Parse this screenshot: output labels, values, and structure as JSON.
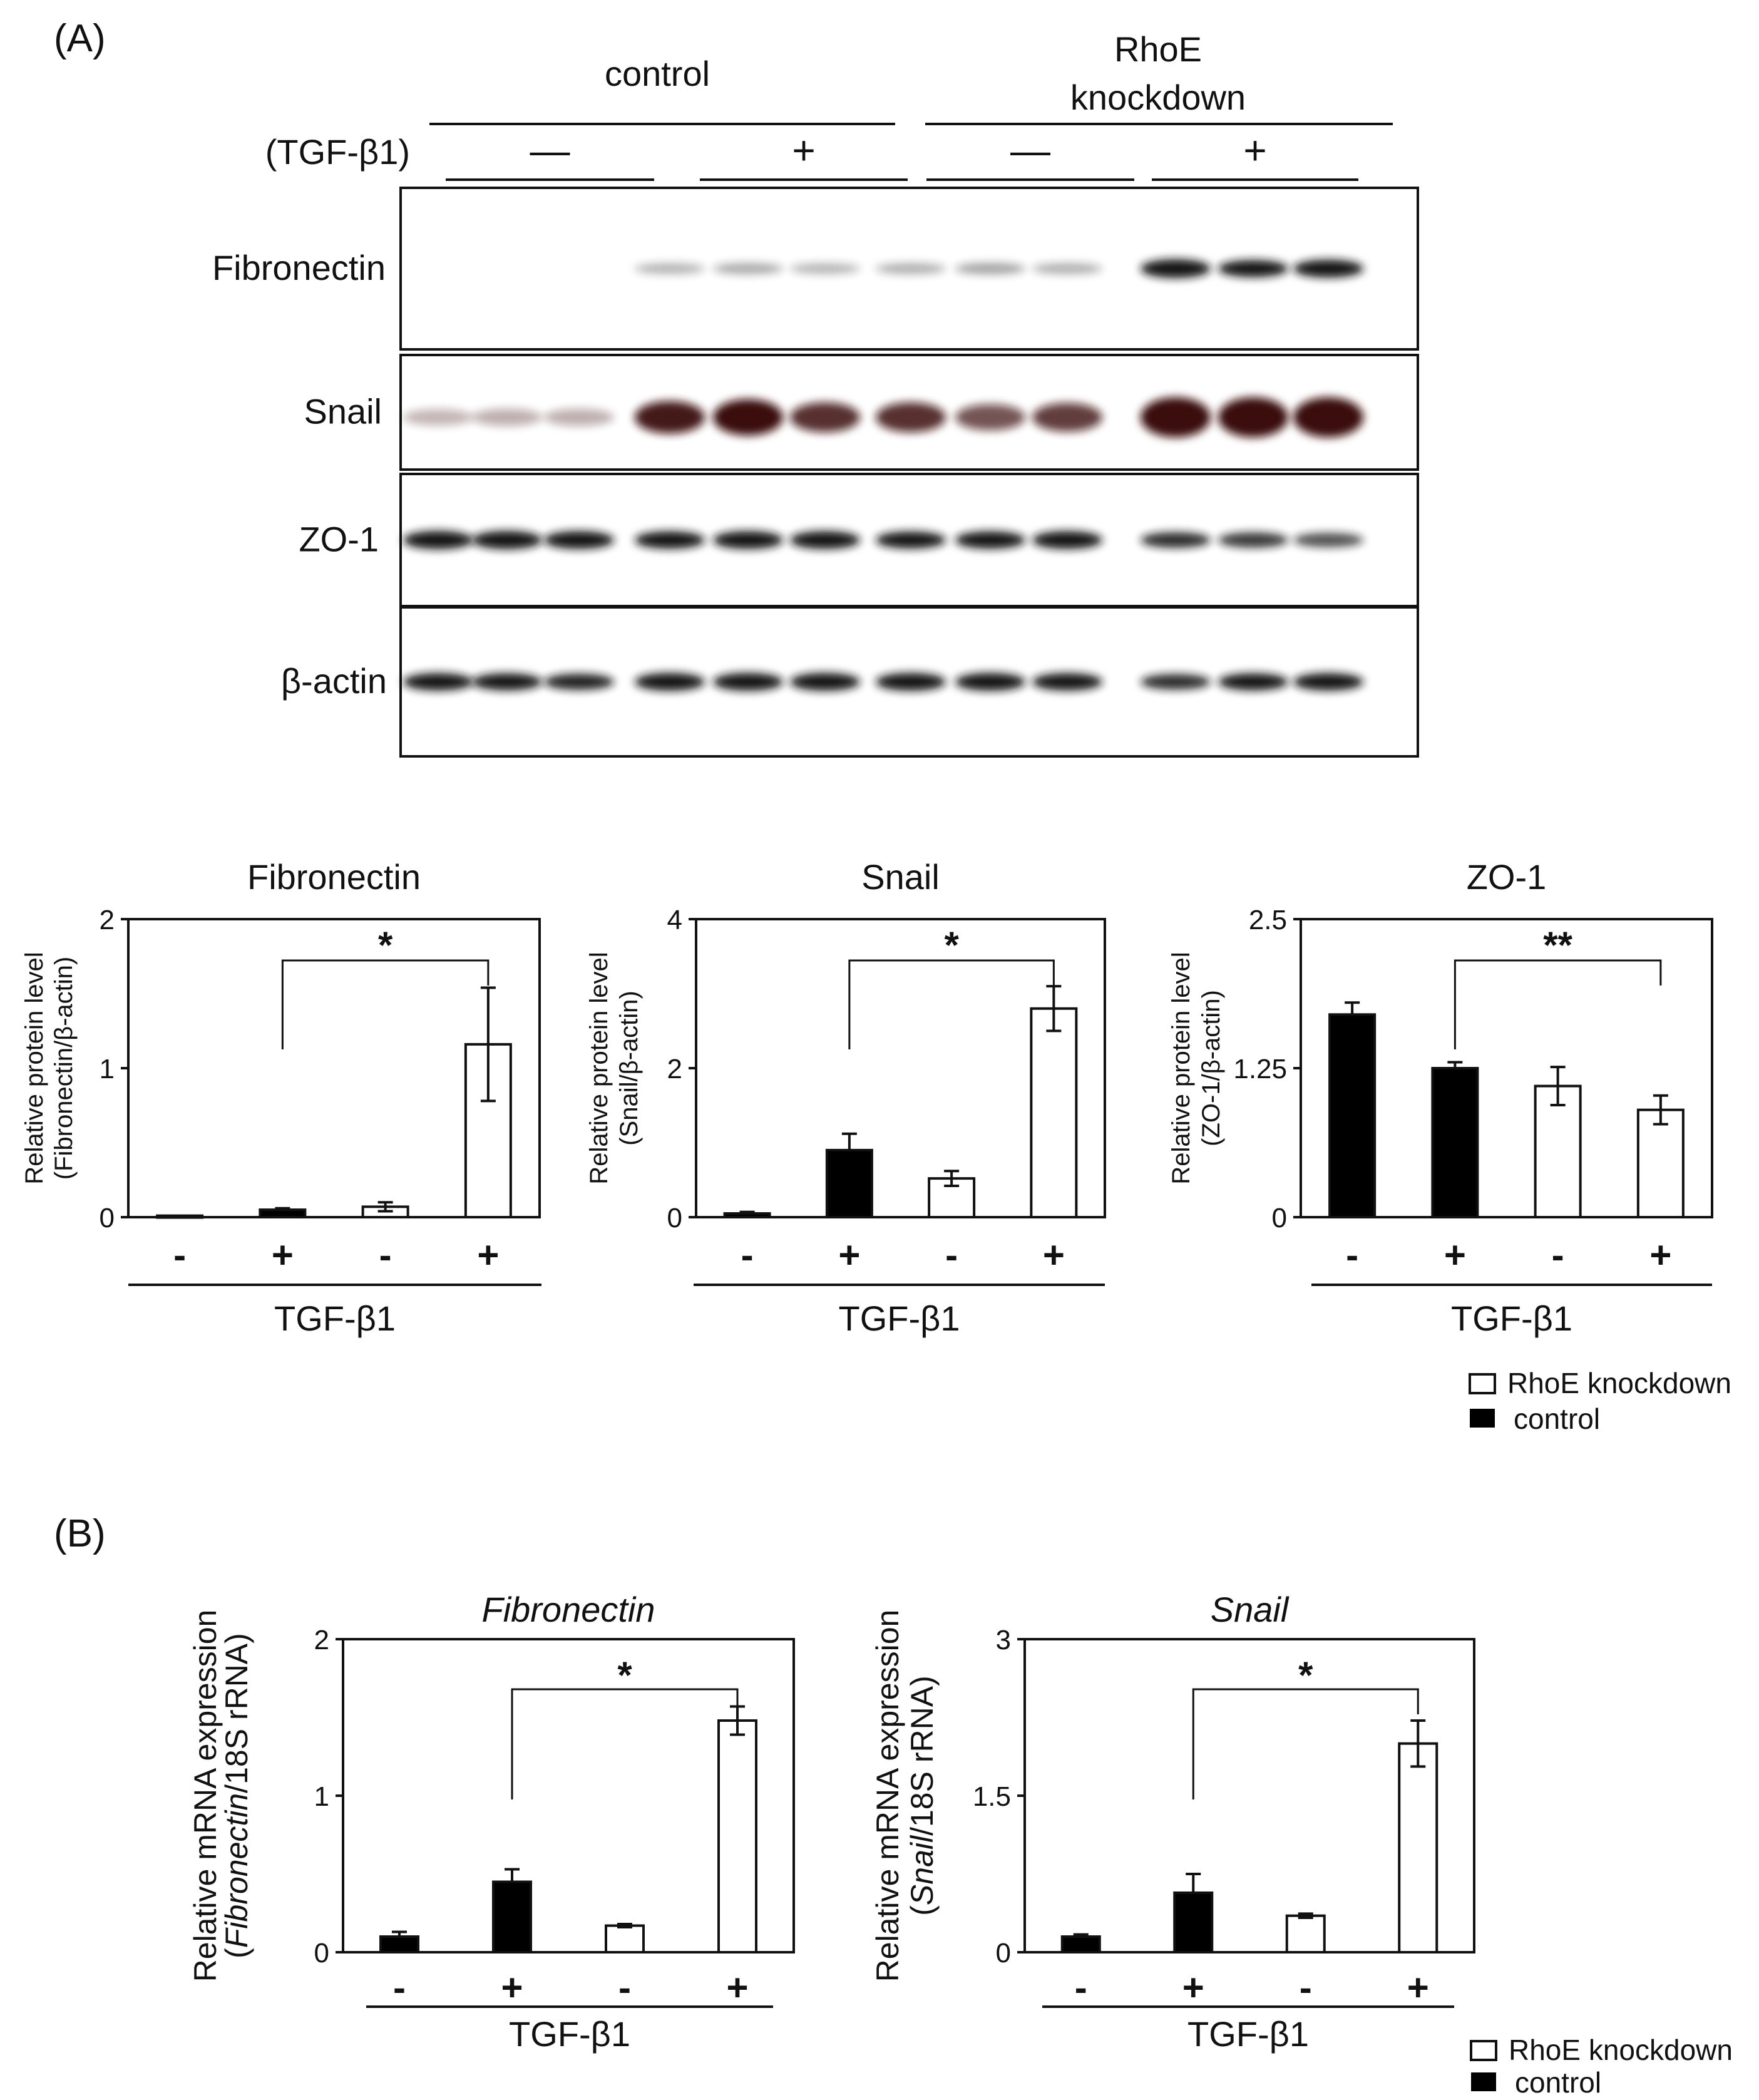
{
  "panel_a": {
    "label": "(A)",
    "header": {
      "control": "control",
      "rhoe_line1": "RhoE",
      "rhoe_line2": "knockdown",
      "tgf": "(TGF-β1)",
      "signs": [
        "—",
        "+",
        "—",
        "+"
      ]
    },
    "blots": [
      {
        "label": "Fibronectin",
        "intensity": [
          0.0,
          0.0,
          0.0,
          0.08,
          0.12,
          0.07,
          0.1,
          0.15,
          0.1,
          1.0,
          0.8,
          0.9
        ]
      },
      {
        "label": "Snail",
        "intensity": [
          0.05,
          0.08,
          0.08,
          0.7,
          0.85,
          0.6,
          0.6,
          0.45,
          0.55,
          1.0,
          1.0,
          1.0
        ]
      },
      {
        "label": "ZO-1",
        "intensity": [
          0.95,
          0.95,
          0.9,
          0.85,
          0.9,
          0.9,
          0.8,
          0.85,
          0.9,
          0.65,
          0.6,
          0.5
        ]
      },
      {
        "label": "β-actin",
        "intensity": [
          0.85,
          0.8,
          0.7,
          0.9,
          0.9,
          0.9,
          0.9,
          0.9,
          0.85,
          0.65,
          0.8,
          0.85
        ]
      }
    ]
  },
  "panel_b": {
    "label": "(B)"
  },
  "legend": {
    "open": "RhoE knockdown",
    "filled": "control"
  },
  "colors": {
    "control": "#000000",
    "knockdown": "#ffffff",
    "blot_band": "#141414",
    "snail_band": "#3a0c08"
  },
  "chart_data": [
    {
      "type": "bar",
      "title": "Fibronectin",
      "title_italic": false,
      "ylabel_line1": "Relative protein level",
      "ylabel_line2": "(Fibronectin/β-actin)",
      "ylim": [
        0,
        2
      ],
      "yticks": [
        "0",
        "1",
        "2"
      ],
      "categories": [
        "-",
        "+",
        "-",
        "+"
      ],
      "groups": [
        "control",
        "control",
        "knockdown",
        "knockdown"
      ],
      "values": [
        0.01,
        0.05,
        0.07,
        1.16
      ],
      "errors": [
        0.0,
        0.01,
        0.03,
        0.38
      ],
      "xlabel": "TGF-β1",
      "sig": {
        "from": 1,
        "to": 3,
        "label": "*"
      }
    },
    {
      "type": "bar",
      "title": "Snail",
      "title_italic": false,
      "ylabel_line1": "Relative protein level",
      "ylabel_line2": "(Snail/β-actin)",
      "ylim": [
        0,
        4
      ],
      "yticks": [
        "0",
        "2",
        "4"
      ],
      "categories": [
        "-",
        "+",
        "-",
        "+"
      ],
      "groups": [
        "control",
        "control",
        "knockdown",
        "knockdown"
      ],
      "values": [
        0.05,
        0.9,
        0.52,
        2.8
      ],
      "errors": [
        0.02,
        0.22,
        0.1,
        0.3
      ],
      "xlabel": "TGF-β1",
      "sig": {
        "from": 1,
        "to": 3,
        "label": "*"
      }
    },
    {
      "type": "bar",
      "title": "ZO-1",
      "title_italic": false,
      "ylabel_line1": "Relative protein level",
      "ylabel_line2": "(ZO-1/β-actin)",
      "ylim": [
        0,
        2.5
      ],
      "yticks": [
        "0",
        "1.25",
        "2.5"
      ],
      "categories": [
        "-",
        "+",
        "-",
        "+"
      ],
      "groups": [
        "control",
        "control",
        "knockdown",
        "knockdown"
      ],
      "values": [
        1.7,
        1.25,
        1.1,
        0.9
      ],
      "errors": [
        0.1,
        0.05,
        0.16,
        0.12
      ],
      "xlabel": "TGF-β1",
      "sig": {
        "from": 1,
        "to": 3,
        "label": "**"
      }
    },
    {
      "type": "bar",
      "title": "Fibronectin",
      "title_italic": true,
      "ylabel_line1": "Relative mRNA expression",
      "ylabel_line2_italic": "Fibronectin",
      "ylabel_line2_rest": "/18S rRNA)",
      "ylim": [
        0,
        2
      ],
      "yticks": [
        "0",
        "1",
        "2"
      ],
      "categories": [
        "-",
        "+",
        "-",
        "+"
      ],
      "groups": [
        "control",
        "control",
        "knockdown",
        "knockdown"
      ],
      "values": [
        0.1,
        0.45,
        0.17,
        1.48
      ],
      "errors": [
        0.03,
        0.08,
        0.01,
        0.09
      ],
      "xlabel": "TGF-β1",
      "sig": {
        "from": 1,
        "to": 3,
        "label": "*"
      }
    },
    {
      "type": "bar",
      "title": "Snail",
      "title_italic": true,
      "ylabel_line1": "Relative mRNA expression",
      "ylabel_line2_italic": "Snail",
      "ylabel_line2_rest": "/18S rRNA)",
      "ylim": [
        0,
        3
      ],
      "yticks": [
        "0",
        "1.5",
        "3"
      ],
      "categories": [
        "-",
        "+",
        "-",
        "+"
      ],
      "groups": [
        "control",
        "control",
        "knockdown",
        "knockdown"
      ],
      "values": [
        0.15,
        0.57,
        0.35,
        2.0
      ],
      "errors": [
        0.02,
        0.18,
        0.02,
        0.22
      ],
      "xlabel": "TGF-β1",
      "sig": {
        "from": 1,
        "to": 3,
        "label": "*"
      }
    }
  ]
}
